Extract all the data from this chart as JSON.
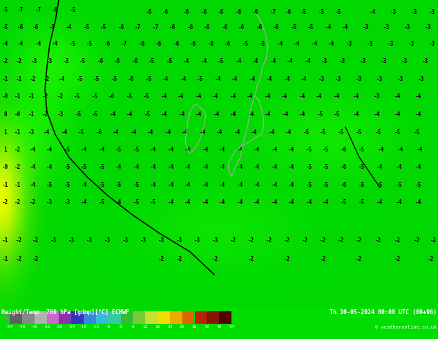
{
  "title_left": "Height/Temp. 700 hPa [gdmp][°C] ECMWF",
  "title_right": "Th 30-05-2024 00:00 UTC (00+96)",
  "copyright": "© weatheronline.co.uk",
  "colorbar_values": [
    -54,
    -48,
    -42,
    -36,
    -30,
    -24,
    -18,
    -12,
    -6,
    0,
    6,
    12,
    18,
    24,
    30,
    36,
    42,
    48,
    54
  ],
  "colorbar_colors": [
    "#606060",
    "#888888",
    "#b0b0b0",
    "#cc66cc",
    "#8833aa",
    "#3333bb",
    "#3388dd",
    "#33bbdd",
    "#33cc99",
    "#33bb33",
    "#77cc33",
    "#ccdd33",
    "#eedd00",
    "#eeaa00",
    "#dd6600",
    "#bb2200",
    "#881100",
    "#550000"
  ],
  "bg_color": "#00dd00",
  "figsize": [
    6.34,
    4.9
  ],
  "dpi": 100,
  "map_colors": {
    "bright_green": "#00ee00",
    "mid_green": "#00cc00",
    "yellow_green": "#88ee00",
    "yellow": "#ffff00",
    "light_yellow": "#ffff88",
    "dark_green": "#009900"
  },
  "bottom_bar_color": "#000000",
  "text_color": "#000000",
  "coastline_color": "#aaaaaa"
}
